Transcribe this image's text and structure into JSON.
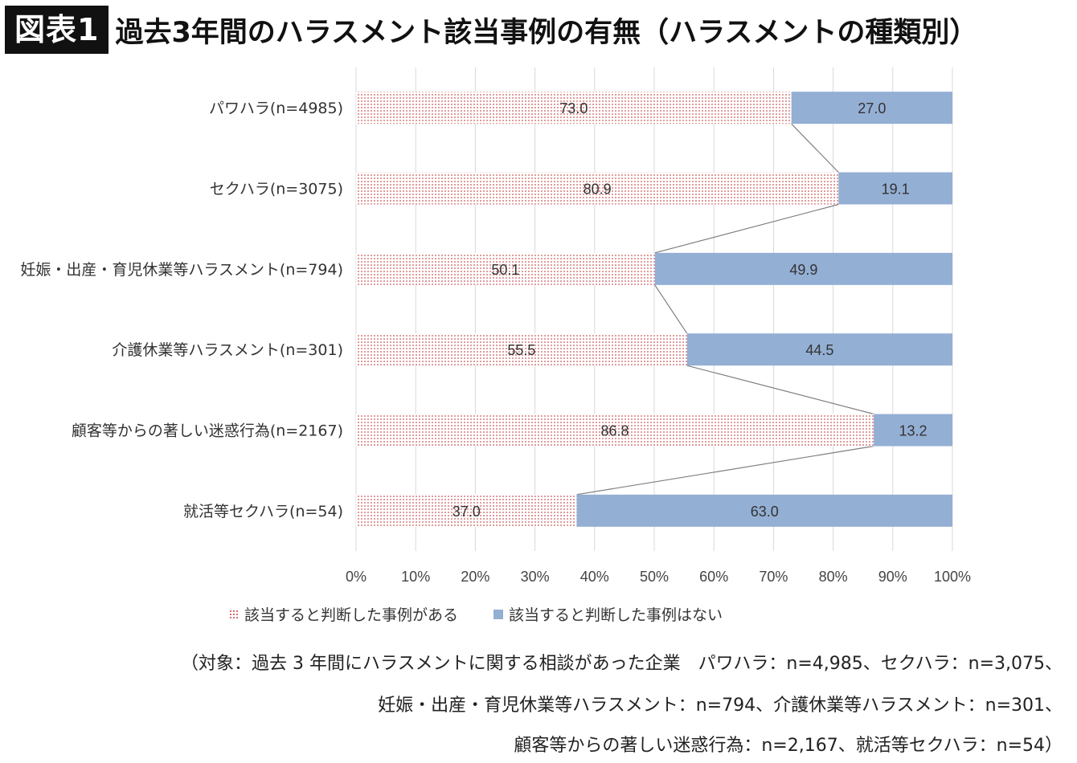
{
  "header": {
    "badge": "図表1",
    "title": "過去3年間のハラスメント該当事例の有無（ハラスメントの種類別）"
  },
  "chart_data": {
    "type": "bar",
    "orientation": "horizontal",
    "stacked": "percent",
    "categories": [
      "パワハラ(n=4985)",
      "セクハラ(n=3075)",
      "妊娠・出産・育児休業等ハラスメント(n=794)",
      "介護休業等ハラスメント(n=301)",
      "顧客等からの著しい迷惑行為(n=2167)",
      "就活等セクハラ(n=54)"
    ],
    "series": [
      {
        "name": "該当すると判断した事例がある",
        "values": [
          73.0,
          80.9,
          50.1,
          55.5,
          86.8,
          37.0
        ],
        "labels": [
          "73.0",
          "80.9",
          "50.1",
          "55.5",
          "86.8",
          "37.0"
        ],
        "color": "#c94a4a",
        "pattern": "dots"
      },
      {
        "name": "該当すると判断した事例はない",
        "values": [
          27.0,
          19.1,
          49.9,
          44.5,
          13.2,
          63.0
        ],
        "labels": [
          "27.0",
          "19.1",
          "49.9",
          "44.5",
          "13.2",
          "63.0"
        ],
        "color": "#94afd4",
        "pattern": "solid"
      }
    ],
    "xticks": [
      "0%",
      "10%",
      "20%",
      "30%",
      "40%",
      "50%",
      "60%",
      "70%",
      "80%",
      "90%",
      "100%"
    ],
    "xlim": [
      0,
      100
    ],
    "grid": true,
    "series_lines": true,
    "legend_position": "bottom-left"
  },
  "notes": [
    "（対象：過去 3 年間にハラスメントに関する相談があった企業　パワハラ：n=4,985、セクハラ：n=3,075、",
    "妊娠・出産・育児休業等ハラスメント：n=794、介護休業等ハラスメント：n=301、",
    "顧客等からの著しい迷惑行為：n=2,167、就活等セクハラ：n=54）"
  ]
}
